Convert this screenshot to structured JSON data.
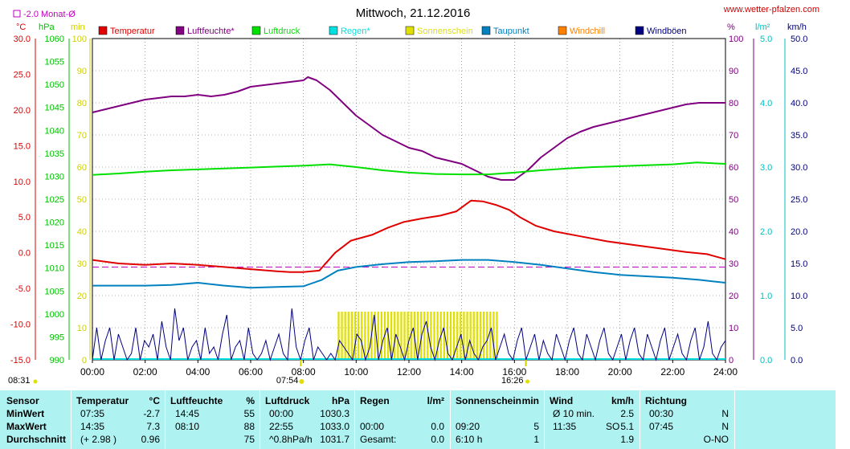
{
  "header": {
    "title": "Mittwoch, 21.12.2016",
    "website": "www.wetter-pfalzen.com",
    "monthly_avg_label": "-2.0 Monat-Ø"
  },
  "axis_units": {
    "temp": "°C",
    "pressure": "hPa",
    "sunshine": "min",
    "humidity": "%",
    "rain": "l/m²",
    "wind": "km/h"
  },
  "legend": [
    {
      "name": "Temperatur",
      "color": "#e00000"
    },
    {
      "name": "Luftfeuchte*",
      "color": "#800080"
    },
    {
      "name": "Luftdruck",
      "color": "#00e000"
    },
    {
      "name": "Regen*",
      "color": "#00e0e0"
    },
    {
      "name": "Sonnenschein",
      "color": "#e0e000"
    },
    {
      "name": "Taupunkt",
      "color": "#0080c0"
    },
    {
      "name": "Windchill",
      "color": "#ff8000"
    },
    {
      "name": "Windböen",
      "color": "#000080"
    }
  ],
  "chart_data": {
    "type": "line",
    "title": "Mittwoch, 21.12.2016",
    "x_ticks": [
      "00:00",
      "02:00",
      "04:00",
      "06:00",
      "08:00",
      "10:00",
      "12:00",
      "14:00",
      "16:00",
      "18:00",
      "20:00",
      "22:00",
      "24:00"
    ],
    "x_range_hours": [
      0,
      24
    ],
    "axes": {
      "temp": {
        "unit": "°C",
        "range": [
          -15,
          30
        ],
        "ticks": [
          "30.0",
          "25.0",
          "20.0",
          "15.0",
          "10.0",
          "5.0",
          "0.0",
          "-5.0",
          "-10.0",
          "-15.0"
        ]
      },
      "pressure": {
        "unit": "hPa",
        "range": [
          990,
          1060
        ],
        "ticks": [
          "1060",
          "1055",
          "1050",
          "1045",
          "1040",
          "1035",
          "1030",
          "1025",
          "1020",
          "1015",
          "1010",
          "1005",
          "1000",
          "995",
          "990"
        ]
      },
      "sunshine": {
        "unit": "min",
        "range": [
          0,
          100
        ],
        "ticks": [
          "100",
          "90",
          "80",
          "70",
          "60",
          "50",
          "40",
          "30",
          "20",
          "10",
          "0"
        ]
      },
      "humidity": {
        "unit": "%",
        "range": [
          0,
          100
        ],
        "ticks": [
          "100",
          "90",
          "80",
          "70",
          "60",
          "50",
          "40",
          "30",
          "20",
          "10",
          "0"
        ]
      },
      "rain": {
        "unit": "l/m²",
        "range": [
          0,
          5
        ],
        "ticks": [
          "5.0",
          "4.0",
          "3.0",
          "2.0",
          "1.0",
          "0.0"
        ]
      },
      "wind": {
        "unit": "km/h",
        "range": [
          0,
          50
        ],
        "ticks": [
          "50.0",
          "45.0",
          "40.0",
          "35.0",
          "30.0",
          "25.0",
          "20.0",
          "15.0",
          "10.0",
          "5.0",
          "0.0"
        ]
      }
    },
    "monthly_avg_temp": -2.0,
    "sunrise": "08:31",
    "sunset": "16:26",
    "marker_0754": "07:54",
    "series": [
      {
        "name": "Temperatur",
        "axis": "temp",
        "color": "#e00000",
        "points": [
          [
            0,
            -1.0
          ],
          [
            1,
            -1.5
          ],
          [
            2,
            -1.7
          ],
          [
            3,
            -1.5
          ],
          [
            4,
            -1.7
          ],
          [
            5,
            -2.0
          ],
          [
            6,
            -2.3
          ],
          [
            7,
            -2.6
          ],
          [
            7.5,
            -2.7
          ],
          [
            8,
            -2.7
          ],
          [
            8.6,
            -2.5
          ],
          [
            9.2,
            0.0
          ],
          [
            9.8,
            1.7
          ],
          [
            10.6,
            2.5
          ],
          [
            11.2,
            3.5
          ],
          [
            11.8,
            4.3
          ],
          [
            12.5,
            4.8
          ],
          [
            13.2,
            5.2
          ],
          [
            13.8,
            5.8
          ],
          [
            14.35,
            7.3
          ],
          [
            14.8,
            7.2
          ],
          [
            15.3,
            6.7
          ],
          [
            15.8,
            6.0
          ],
          [
            16.2,
            5.0
          ],
          [
            16.8,
            3.8
          ],
          [
            17.5,
            3.0
          ],
          [
            18.5,
            2.3
          ],
          [
            19.5,
            1.6
          ],
          [
            20.5,
            1.1
          ],
          [
            21.5,
            0.6
          ],
          [
            22.5,
            0.1
          ],
          [
            23.3,
            -0.2
          ],
          [
            24,
            -0.9
          ]
        ]
      },
      {
        "name": "Luftfeuchte*",
        "axis": "humidity",
        "color": "#800080",
        "points": [
          [
            0,
            77
          ],
          [
            0.5,
            78
          ],
          [
            1,
            79
          ],
          [
            1.5,
            80
          ],
          [
            2,
            81
          ],
          [
            2.5,
            81.5
          ],
          [
            3,
            82
          ],
          [
            3.5,
            82
          ],
          [
            4,
            82.5
          ],
          [
            4.5,
            82
          ],
          [
            5,
            82.5
          ],
          [
            5.5,
            83.5
          ],
          [
            6,
            85
          ],
          [
            6.5,
            85.5
          ],
          [
            7,
            86
          ],
          [
            7.5,
            86.5
          ],
          [
            8,
            87
          ],
          [
            8.17,
            88
          ],
          [
            8.5,
            87
          ],
          [
            9,
            84
          ],
          [
            9.5,
            80
          ],
          [
            10,
            76
          ],
          [
            10.5,
            73
          ],
          [
            11,
            70
          ],
          [
            11.5,
            68
          ],
          [
            12,
            66
          ],
          [
            12.5,
            65
          ],
          [
            13,
            63
          ],
          [
            13.5,
            62
          ],
          [
            14,
            61
          ],
          [
            14.5,
            59
          ],
          [
            15,
            57
          ],
          [
            15.5,
            56
          ],
          [
            16,
            56
          ],
          [
            16.5,
            59
          ],
          [
            17,
            63
          ],
          [
            17.5,
            66
          ],
          [
            18,
            69
          ],
          [
            18.5,
            71
          ],
          [
            19,
            72.5
          ],
          [
            19.5,
            73.5
          ],
          [
            20,
            74.5
          ],
          [
            20.5,
            75.5
          ],
          [
            21,
            76.5
          ],
          [
            21.5,
            77.5
          ],
          [
            22,
            78.5
          ],
          [
            22.5,
            79.5
          ],
          [
            23,
            80
          ],
          [
            24,
            80
          ]
        ]
      },
      {
        "name": "Luftdruck",
        "axis": "pressure",
        "color": "#00e000",
        "points": [
          [
            0,
            1030.3
          ],
          [
            1,
            1030.6
          ],
          [
            2,
            1031.0
          ],
          [
            3,
            1031.3
          ],
          [
            4,
            1031.5
          ],
          [
            5,
            1031.7
          ],
          [
            6,
            1031.9
          ],
          [
            7,
            1032.1
          ],
          [
            8,
            1032.3
          ],
          [
            9,
            1032.6
          ],
          [
            10,
            1032.0
          ],
          [
            11,
            1031.3
          ],
          [
            12,
            1030.8
          ],
          [
            13,
            1030.5
          ],
          [
            14,
            1030.4
          ],
          [
            15,
            1030.4
          ],
          [
            16,
            1030.8
          ],
          [
            17,
            1031.3
          ],
          [
            18,
            1031.7
          ],
          [
            19,
            1032.0
          ],
          [
            20,
            1032.2
          ],
          [
            21,
            1032.4
          ],
          [
            22,
            1032.6
          ],
          [
            22.92,
            1033.0
          ],
          [
            24,
            1032.7
          ]
        ]
      },
      {
        "name": "Taupunkt",
        "axis": "temp",
        "color": "#0080c0",
        "points": [
          [
            0,
            -4.6
          ],
          [
            1,
            -4.6
          ],
          [
            2,
            -4.6
          ],
          [
            3,
            -4.5
          ],
          [
            4,
            -4.2
          ],
          [
            5,
            -4.6
          ],
          [
            6,
            -4.9
          ],
          [
            7,
            -4.8
          ],
          [
            8,
            -4.7
          ],
          [
            8.7,
            -3.8
          ],
          [
            9.3,
            -2.5
          ],
          [
            10,
            -2.0
          ],
          [
            11,
            -1.6
          ],
          [
            12,
            -1.3
          ],
          [
            13,
            -1.2
          ],
          [
            14,
            -1.0
          ],
          [
            15,
            -1.0
          ],
          [
            16,
            -1.3
          ],
          [
            17,
            -1.7
          ],
          [
            18,
            -2.2
          ],
          [
            19,
            -2.7
          ],
          [
            20,
            -3.1
          ],
          [
            21,
            -3.3
          ],
          [
            22,
            -3.5
          ],
          [
            23,
            -3.8
          ],
          [
            24,
            -4.2
          ]
        ]
      }
    ],
    "wind_gusts": {
      "axis": "wind",
      "color": "#000080",
      "values": [
        0,
        5,
        0,
        3,
        5,
        0,
        4,
        2,
        0,
        1,
        5,
        0,
        3,
        2,
        4,
        0,
        6,
        2,
        0,
        8,
        3,
        5,
        0,
        2,
        3,
        0,
        5,
        1,
        2,
        0,
        4,
        7,
        0,
        2,
        3,
        0,
        5,
        1,
        0,
        1,
        3,
        0,
        2,
        4,
        1,
        0,
        8,
        2,
        0,
        3,
        5,
        0,
        2,
        1,
        0,
        1,
        0,
        3,
        2,
        1,
        0,
        4,
        3,
        0,
        2,
        7,
        0,
        3,
        5,
        0,
        4,
        2,
        0,
        3,
        5,
        0,
        4,
        6,
        2,
        0,
        3,
        5,
        1,
        0,
        2,
        4,
        0,
        3,
        1,
        0,
        2,
        3,
        5,
        0,
        2,
        4,
        1,
        0,
        3,
        5,
        0,
        2,
        4,
        0,
        3,
        1,
        0,
        4,
        2,
        0,
        3,
        5,
        1,
        0,
        4,
        2,
        0,
        3,
        5,
        1,
        0,
        2,
        4,
        0,
        3,
        5,
        1,
        0,
        4,
        2,
        0,
        3,
        5,
        0,
        2,
        4,
        1,
        0,
        3,
        5,
        0,
        2,
        6,
        1,
        0,
        2,
        3
      ]
    },
    "sunshine_bars": {
      "axis": "sunshine",
      "color": "#e0e000",
      "from_hour": 9.3,
      "to_hour": 15.4,
      "step_hours": 0.125,
      "value": 5
    }
  },
  "table": {
    "columns": [
      {
        "key": "sensor",
        "header": "Sensor",
        "unit": ""
      },
      {
        "key": "temperatur",
        "header": "Temperatur",
        "unit": "°C"
      },
      {
        "key": "luftfeuchte",
        "header": "Luftfeuchte",
        "unit": "%"
      },
      {
        "key": "luftdruck",
        "header": "Luftdruck",
        "unit": "hPa"
      },
      {
        "key": "regen",
        "header": "Regen",
        "unit": "l/m²"
      },
      {
        "key": "sonnenschein",
        "header": "Sonnenschein",
        "unit": "min"
      },
      {
        "key": "wind",
        "header": "Wind",
        "unit": "km/h"
      },
      {
        "key": "richtung",
        "header": "Richtung",
        "unit": ""
      }
    ],
    "rows": [
      {
        "label": "MinWert",
        "temp_time": "07:35",
        "temp_val": "-2.7",
        "hum_time": "14:45",
        "hum_val": "55",
        "pres_time": "00:00",
        "pres_val": "1030.3",
        "rain_time": "",
        "rain_val": "",
        "sun_time": "",
        "sun_val": "",
        "wind_time": "Ø 10 min.",
        "wind_dir": "",
        "wind_val": "2.5",
        "dir_time": "00:30",
        "dir_val": "N"
      },
      {
        "label": "MaxWert",
        "temp_time": "14:35",
        "temp_val": "7.3",
        "hum_time": "08:10",
        "hum_val": "88",
        "pres_time": "22:55",
        "pres_val": "1033.0",
        "rain_time": "00:00",
        "rain_val": "0.0",
        "sun_time": "09:20",
        "sun_val": "5",
        "wind_time": "11:35",
        "wind_dir": "SO",
        "wind_val": "5.1",
        "dir_time": "07:45",
        "dir_val": "N"
      },
      {
        "label": "Durchschnitt",
        "temp_time": "(+ 2.98 )",
        "temp_val": "0.96",
        "hum_time": "",
        "hum_val": "75",
        "pres_time": "^0.8hPa/h",
        "pres_val": "1031.7",
        "rain_time": "Gesamt:",
        "rain_val": "0.0",
        "sun_time": "6:10 h",
        "sun_val": "1",
        "wind_time": "",
        "wind_dir": "",
        "wind_val": "1.9",
        "dir_time": "",
        "dir_val": "O-NO"
      }
    ]
  }
}
